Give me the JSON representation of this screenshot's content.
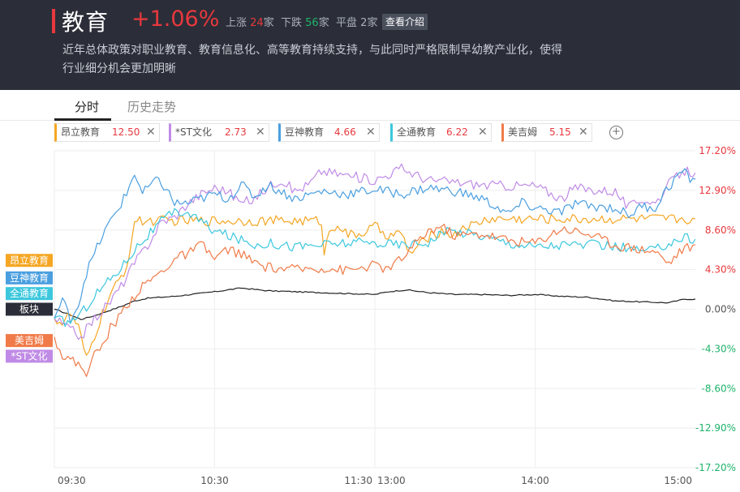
{
  "header": {
    "title": "教育",
    "change": "+1.06%",
    "up_label": "上涨",
    "up_count": "24",
    "down_label": "下跌",
    "down_count": "56",
    "flat_label": "平盘",
    "flat_count": "2",
    "unit": "家",
    "intro_button": "查看介绍",
    "description": "近年总体政策对职业教育、教育信息化、高等教育持续支持，与此同时严格限制早幼教产业化，使得行业细分机会更加明晰"
  },
  "tabs": [
    {
      "label": "分时",
      "active": true
    },
    {
      "label": "历史走势",
      "active": false
    }
  ],
  "chips": [
    {
      "name": "昂立教育",
      "price": "12.50",
      "color": "#f5a623"
    },
    {
      "name": "*ST文化",
      "price": "2.73",
      "color": "#c08be6"
    },
    {
      "name": "豆神教育",
      "price": "4.66",
      "color": "#4a9fe0"
    },
    {
      "name": "全通教育",
      "price": "6.22",
      "color": "#3cc7dd"
    },
    {
      "name": "美吉姆",
      "price": "5.15",
      "color": "#f07a48"
    }
  ],
  "add_icon": "plus-circle-icon",
  "close_icon": "close-icon",
  "colors": {
    "up": "#e8383d",
    "down": "#1fb36a",
    "header_bg": "#2b2e38",
    "sector_line": "#222222"
  },
  "chart_data": {
    "type": "line",
    "x_ticks": [
      "09:30",
      "10:30",
      "11:30",
      "13:00",
      "14:00",
      "15:00"
    ],
    "y_ticks": [
      "17.20%",
      "12.90%",
      "8.60%",
      "4.30%",
      "0.00%",
      "-4.30%",
      "-8.60%",
      "-12.90%",
      "-17.20%"
    ],
    "ylim": [
      -17.2,
      17.2
    ],
    "n_points": 241,
    "grid": true,
    "legend_labels": [
      {
        "label": "昂立教育",
        "color": "#f5a623",
        "value": 5.3
      },
      {
        "label": "豆神教育",
        "color": "#4a9fe0",
        "value": 3.4
      },
      {
        "label": "全通教育",
        "color": "#3cc7dd",
        "value": 1.7
      },
      {
        "label": "板块",
        "color": "#2b2e38",
        "value": 0.0
      },
      {
        "label": "美吉姆",
        "color": "#f07a48",
        "value": -3.4
      },
      {
        "label": "*ST文化",
        "color": "#c08be6",
        "value": -5.1
      }
    ],
    "series": [
      {
        "name": "板块",
        "color": "#222222",
        "width": 1.2,
        "points": [
          [
            0,
            0.0
          ],
          [
            5,
            -0.5
          ],
          [
            10,
            -1.1
          ],
          [
            15,
            -0.7
          ],
          [
            20,
            -0.2
          ],
          [
            25,
            0.3
          ],
          [
            30,
            0.9
          ],
          [
            35,
            1.2
          ],
          [
            45,
            1.4
          ],
          [
            60,
            1.9
          ],
          [
            70,
            2.3
          ],
          [
            80,
            2.0
          ],
          [
            90,
            1.9
          ],
          [
            100,
            1.8
          ],
          [
            110,
            1.7
          ],
          [
            120,
            1.6
          ],
          [
            125,
            1.9
          ],
          [
            132,
            2.1
          ],
          [
            140,
            1.8
          ],
          [
            150,
            1.6
          ],
          [
            160,
            1.6
          ],
          [
            170,
            1.5
          ],
          [
            180,
            1.6
          ],
          [
            190,
            1.4
          ],
          [
            200,
            1.3
          ],
          [
            210,
            0.9
          ],
          [
            220,
            0.8
          ],
          [
            230,
            0.7
          ],
          [
            236,
            1.1
          ],
          [
            240,
            1.1
          ]
        ]
      },
      {
        "name": "昂立教育",
        "color": "#f5a623",
        "width": 1.2,
        "points": [
          [
            0,
            -1.0
          ],
          [
            3,
            -1.5
          ],
          [
            6,
            -0.5
          ],
          [
            9,
            -2.0
          ],
          [
            12,
            -5.5
          ],
          [
            15,
            -3.0
          ],
          [
            18,
            -0.5
          ],
          [
            21,
            1.5
          ],
          [
            24,
            3.0
          ],
          [
            27,
            4.5
          ],
          [
            30,
            9.5
          ],
          [
            35,
            9.6
          ],
          [
            45,
            9.6
          ],
          [
            60,
            9.6
          ],
          [
            70,
            9.6
          ],
          [
            80,
            9.6
          ],
          [
            90,
            9.6
          ],
          [
            100,
            9.6
          ],
          [
            101,
            6.0
          ],
          [
            103,
            8.5
          ],
          [
            106,
            9.3
          ],
          [
            110,
            8.0
          ],
          [
            115,
            8.2
          ],
          [
            120,
            9.0
          ],
          [
            125,
            8.0
          ],
          [
            130,
            8.2
          ],
          [
            133,
            6.0
          ],
          [
            140,
            7.8
          ],
          [
            145,
            8.5
          ],
          [
            150,
            8.0
          ],
          [
            153,
            9.0
          ],
          [
            157,
            9.1
          ],
          [
            162,
            9.8
          ],
          [
            170,
            9.8
          ],
          [
            180,
            9.8
          ],
          [
            200,
            9.8
          ],
          [
            220,
            9.8
          ],
          [
            240,
            9.8
          ]
        ]
      },
      {
        "name": "*ST文化",
        "color": "#c08be6",
        "width": 1.2,
        "points": [
          [
            0,
            -1.0
          ],
          [
            5,
            -2.0
          ],
          [
            10,
            -3.0
          ],
          [
            15,
            -1.0
          ],
          [
            20,
            0.5
          ],
          [
            25,
            2.5
          ],
          [
            30,
            5.0
          ],
          [
            35,
            7.0
          ],
          [
            40,
            9.5
          ],
          [
            45,
            10.0
          ],
          [
            50,
            11.5
          ],
          [
            55,
            12.5
          ],
          [
            60,
            13.2
          ],
          [
            65,
            12.8
          ],
          [
            70,
            11.5
          ],
          [
            75,
            12.0
          ],
          [
            80,
            13.3
          ],
          [
            85,
            14.1
          ],
          [
            90,
            12.8
          ],
          [
            95,
            13.5
          ],
          [
            100,
            15.0
          ],
          [
            110,
            14.5
          ],
          [
            120,
            14.0
          ],
          [
            130,
            15.3
          ],
          [
            140,
            14.0
          ],
          [
            150,
            13.8
          ],
          [
            160,
            13.5
          ],
          [
            170,
            13.4
          ],
          [
            180,
            13.4
          ],
          [
            190,
            12.0
          ],
          [
            195,
            13.2
          ],
          [
            200,
            13.0
          ],
          [
            210,
            12.8
          ],
          [
            215,
            11.0
          ],
          [
            220,
            12.0
          ],
          [
            225,
            11.5
          ],
          [
            230,
            13.5
          ],
          [
            235,
            15.0
          ],
          [
            240,
            14.8
          ]
        ]
      },
      {
        "name": "豆神教育",
        "color": "#4a9fe0",
        "width": 1.2,
        "points": [
          [
            0,
            -1.0
          ],
          [
            3,
            1.0
          ],
          [
            6,
            -1.0
          ],
          [
            9,
            0.5
          ],
          [
            12,
            4.0
          ],
          [
            15,
            6.0
          ],
          [
            18,
            8.0
          ],
          [
            21,
            9.5
          ],
          [
            24,
            11.0
          ],
          [
            27,
            12.5
          ],
          [
            30,
            14.8
          ],
          [
            33,
            12.5
          ],
          [
            36,
            13.5
          ],
          [
            39,
            14.0
          ],
          [
            42,
            13.0
          ],
          [
            45,
            11.5
          ],
          [
            50,
            11.5
          ],
          [
            55,
            12.0
          ],
          [
            60,
            12.5
          ],
          [
            65,
            12.0
          ],
          [
            70,
            13.5
          ],
          [
            75,
            12.2
          ],
          [
            80,
            13.5
          ],
          [
            90,
            12.0
          ],
          [
            100,
            12.8
          ],
          [
            110,
            12.5
          ],
          [
            120,
            13.0
          ],
          [
            130,
            12.5
          ],
          [
            140,
            13.2
          ],
          [
            150,
            12.8
          ],
          [
            160,
            12.0
          ],
          [
            165,
            11.2
          ],
          [
            170,
            10.3
          ],
          [
            175,
            11.5
          ],
          [
            180,
            11.0
          ],
          [
            190,
            10.5
          ],
          [
            195,
            11.5
          ],
          [
            200,
            11.2
          ],
          [
            210,
            11.0
          ],
          [
            215,
            10.2
          ],
          [
            220,
            11.2
          ],
          [
            225,
            11.0
          ],
          [
            228,
            12.5
          ],
          [
            232,
            14.0
          ],
          [
            235,
            15.0
          ],
          [
            238,
            14.2
          ],
          [
            240,
            14.1
          ]
        ]
      },
      {
        "name": "全通教育",
        "color": "#3cc7dd",
        "width": 1.2,
        "points": [
          [
            0,
            -1.0
          ],
          [
            5,
            -1.5
          ],
          [
            10,
            -0.5
          ],
          [
            15,
            1.5
          ],
          [
            20,
            3.0
          ],
          [
            25,
            4.5
          ],
          [
            30,
            6.5
          ],
          [
            35,
            8.0
          ],
          [
            40,
            9.5
          ],
          [
            45,
            10.5
          ],
          [
            50,
            10.5
          ],
          [
            55,
            9.5
          ],
          [
            60,
            8.5
          ],
          [
            65,
            8.0
          ],
          [
            70,
            7.5
          ],
          [
            75,
            7.0
          ],
          [
            80,
            7.2
          ],
          [
            90,
            6.8
          ],
          [
            100,
            7.0
          ],
          [
            110,
            7.2
          ],
          [
            120,
            7.2
          ],
          [
            130,
            7.0
          ],
          [
            140,
            7.3
          ],
          [
            145,
            8.3
          ],
          [
            150,
            8.5
          ],
          [
            160,
            8.0
          ],
          [
            170,
            7.2
          ],
          [
            180,
            6.8
          ],
          [
            190,
            7.0
          ],
          [
            200,
            7.0
          ],
          [
            210,
            6.8
          ],
          [
            220,
            6.3
          ],
          [
            225,
            6.4
          ],
          [
            230,
            7.2
          ],
          [
            236,
            7.8
          ],
          [
            240,
            7.6
          ]
        ]
      },
      {
        "name": "美吉姆",
        "color": "#f07a48",
        "width": 1.2,
        "points": [
          [
            0,
            -3.0
          ],
          [
            3,
            -5.0
          ],
          [
            6,
            -5.5
          ],
          [
            9,
            -6.0
          ],
          [
            12,
            -6.8
          ],
          [
            15,
            -5.0
          ],
          [
            18,
            -4.0
          ],
          [
            21,
            -2.0
          ],
          [
            24,
            -1.0
          ],
          [
            27,
            0.5
          ],
          [
            30,
            1.5
          ],
          [
            35,
            3.0
          ],
          [
            40,
            4.0
          ],
          [
            45,
            5.5
          ],
          [
            50,
            6.0
          ],
          [
            55,
            7.0
          ],
          [
            60,
            5.5
          ],
          [
            65,
            6.5
          ],
          [
            70,
            6.0
          ],
          [
            75,
            5.0
          ],
          [
            80,
            4.5
          ],
          [
            90,
            4.3
          ],
          [
            100,
            4.5
          ],
          [
            110,
            4.2
          ],
          [
            120,
            4.8
          ],
          [
            125,
            4.3
          ],
          [
            130,
            5.5
          ],
          [
            135,
            7.0
          ],
          [
            140,
            8.5
          ],
          [
            145,
            9.0
          ],
          [
            150,
            8.0
          ],
          [
            160,
            8.2
          ],
          [
            170,
            7.5
          ],
          [
            180,
            7.2
          ],
          [
            190,
            8.8
          ],
          [
            200,
            8.2
          ],
          [
            210,
            7.0
          ],
          [
            220,
            6.5
          ],
          [
            225,
            6.3
          ],
          [
            230,
            5.0
          ],
          [
            235,
            6.5
          ],
          [
            240,
            7.0
          ]
        ]
      }
    ]
  }
}
